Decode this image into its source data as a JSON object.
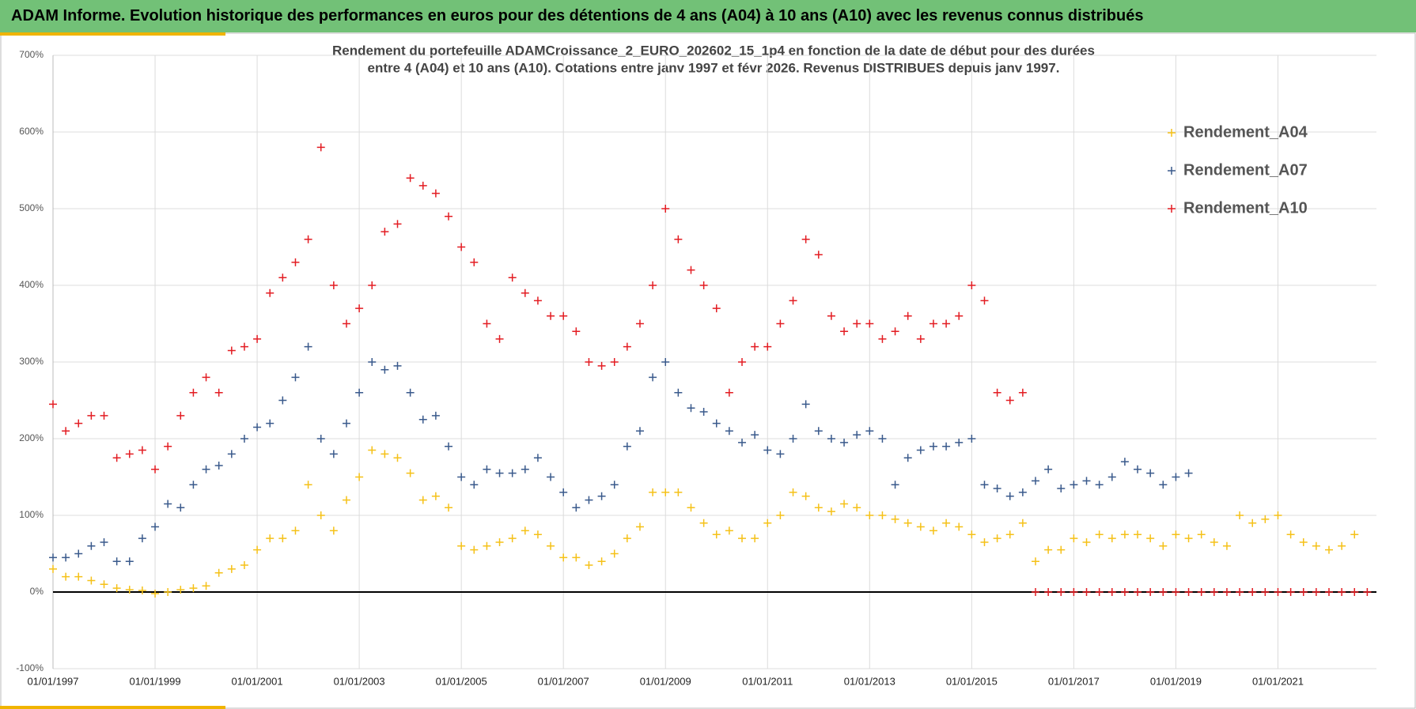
{
  "header": {
    "title": "ADAM Informe. Evolution historique des performances en euros pour des détentions de 4 ans (A04) à 10 ans (A10) avec les revenus connus distribués"
  },
  "chart_data": {
    "type": "scatter",
    "title_lines": [
      "Rendement du portefeuille ADAMCroissance_2_EURO_202602_15_1p4  en fonction de la date de début pour des durées",
      "entre 4 (A04) et 10 ans (A10). Cotations  entre janv 1997 et févr 2026. Revenus DISTRIBUES depuis janv 1997."
    ],
    "x": [
      1997,
      1997.25,
      1997.5,
      1997.75,
      1998,
      1998.25,
      1998.5,
      1998.75,
      1999,
      1999.25,
      1999.5,
      1999.75,
      2000,
      2000.25,
      2000.5,
      2000.75,
      2001,
      2001.25,
      2001.5,
      2001.75,
      2002,
      2002.25,
      2002.5,
      2002.75,
      2003,
      2003.25,
      2003.5,
      2003.75,
      2004,
      2004.25,
      2004.5,
      2004.75,
      2005,
      2005.25,
      2005.5,
      2005.75,
      2006,
      2006.25,
      2006.5,
      2006.75,
      2007,
      2007.25,
      2007.5,
      2007.75,
      2008,
      2008.25,
      2008.5,
      2008.75,
      2009,
      2009.25,
      2009.5,
      2009.75,
      2010,
      2010.25,
      2010.5,
      2010.75,
      2011,
      2011.25,
      2011.5,
      2011.75,
      2012,
      2012.25,
      2012.5,
      2012.75,
      2013,
      2013.25,
      2013.5,
      2013.75,
      2014,
      2014.25,
      2014.5,
      2014.75,
      2015,
      2015.25,
      2015.5,
      2015.75,
      2016,
      2016.25,
      2016.5,
      2016.75,
      2017,
      2017.25,
      2017.5,
      2017.75,
      2018,
      2018.25,
      2018.5,
      2018.75,
      2019,
      2019.25,
      2019.5,
      2019.75,
      2020,
      2020.25,
      2020.5,
      2020.75,
      2021,
      2021.25,
      2021.5,
      2021.75,
      2022,
      2022.25,
      2022.5,
      2022.75
    ],
    "series": [
      {
        "name": "Rendement_A04",
        "color": "#f5c118",
        "values": [
          30,
          20,
          20,
          15,
          10,
          5,
          3,
          2,
          -2,
          0,
          3,
          5,
          8,
          25,
          30,
          35,
          55,
          70,
          70,
          80,
          140,
          100,
          80,
          120,
          150,
          185,
          180,
          175,
          155,
          120,
          125,
          110,
          60,
          55,
          60,
          65,
          70,
          80,
          75,
          60,
          45,
          45,
          35,
          40,
          50,
          70,
          85,
          130,
          130,
          130,
          110,
          90,
          75,
          80,
          70,
          70,
          90,
          100,
          130,
          125,
          110,
          105,
          115,
          110,
          100,
          100,
          95,
          90,
          85,
          80,
          90,
          85,
          75,
          65,
          70,
          75,
          90,
          40,
          55,
          55,
          70,
          65,
          75,
          70,
          75,
          75,
          70,
          60,
          75,
          70,
          75,
          65,
          60,
          100,
          90,
          95,
          100,
          75,
          65,
          60,
          55,
          60,
          75,
          null
        ]
      },
      {
        "name": "Rendement_A07",
        "color": "#3a5a8c",
        "values": [
          45,
          45,
          50,
          60,
          65,
          40,
          40,
          70,
          85,
          115,
          110,
          140,
          160,
          165,
          180,
          200,
          215,
          220,
          250,
          280,
          320,
          200,
          180,
          220,
          260,
          300,
          290,
          295,
          260,
          225,
          230,
          190,
          150,
          140,
          160,
          155,
          155,
          160,
          175,
          150,
          130,
          110,
          120,
          125,
          140,
          190,
          210,
          280,
          300,
          260,
          240,
          235,
          220,
          210,
          195,
          205,
          185,
          180,
          200,
          245,
          210,
          200,
          195,
          205,
          210,
          200,
          140,
          175,
          185,
          190,
          190,
          195,
          200,
          140,
          135,
          125,
          130,
          145,
          160,
          135,
          140,
          145,
          140,
          150,
          170,
          160,
          155,
          140,
          150,
          155,
          null,
          null,
          null,
          null,
          null,
          null,
          null,
          null,
          null,
          null,
          null,
          null,
          null,
          null
        ]
      },
      {
        "name": "Rendement_A10",
        "color": "#e31d23",
        "values": [
          245,
          210,
          220,
          230,
          230,
          175,
          180,
          185,
          160,
          190,
          230,
          260,
          280,
          260,
          315,
          320,
          330,
          390,
          410,
          430,
          460,
          580,
          400,
          350,
          370,
          400,
          470,
          480,
          540,
          530,
          520,
          490,
          450,
          430,
          350,
          330,
          410,
          390,
          380,
          360,
          360,
          340,
          300,
          295,
          300,
          320,
          350,
          400,
          500,
          460,
          420,
          400,
          370,
          260,
          300,
          320,
          320,
          350,
          380,
          460,
          440,
          360,
          340,
          350,
          350,
          330,
          340,
          360,
          330,
          350,
          350,
          360,
          400,
          380,
          260,
          250,
          260,
          0,
          0,
          0,
          0,
          0,
          0,
          0,
          0,
          0,
          0,
          0,
          0,
          0,
          0,
          0,
          0,
          0,
          0,
          0,
          0,
          0,
          0,
          0,
          0,
          0,
          0,
          0
        ]
      }
    ],
    "xlim": [
      1997,
      2022.93
    ],
    "xticks": [
      {
        "value": 1997,
        "label": "01/01/1997"
      },
      {
        "value": 1999,
        "label": "01/01/1999"
      },
      {
        "value": 2001,
        "label": "01/01/2001"
      },
      {
        "value": 2003,
        "label": "01/01/2003"
      },
      {
        "value": 2005,
        "label": "01/01/2005"
      },
      {
        "value": 2007,
        "label": "01/01/2007"
      },
      {
        "value": 2009,
        "label": "01/01/2009"
      },
      {
        "value": 2011,
        "label": "01/01/2011"
      },
      {
        "value": 2013,
        "label": "01/01/2013"
      },
      {
        "value": 2015,
        "label": "01/01/2015"
      },
      {
        "value": 2017,
        "label": "01/01/2017"
      },
      {
        "value": 2019,
        "label": "01/01/2019"
      },
      {
        "value": 2021,
        "label": "01/01/2021"
      }
    ],
    "ylim": [
      -100,
      700
    ],
    "yticks": [
      {
        "value": -100,
        "label": "-100%"
      },
      {
        "value": 0,
        "label": "0%"
      },
      {
        "value": 100,
        "label": "100%"
      },
      {
        "value": 200,
        "label": "200%"
      },
      {
        "value": 300,
        "label": "300%"
      },
      {
        "value": 400,
        "label": "400%"
      },
      {
        "value": 500,
        "label": "500%"
      },
      {
        "value": 600,
        "label": "600%"
      },
      {
        "value": 700,
        "label": "700%"
      }
    ],
    "grid": true,
    "legend": "upper right"
  }
}
